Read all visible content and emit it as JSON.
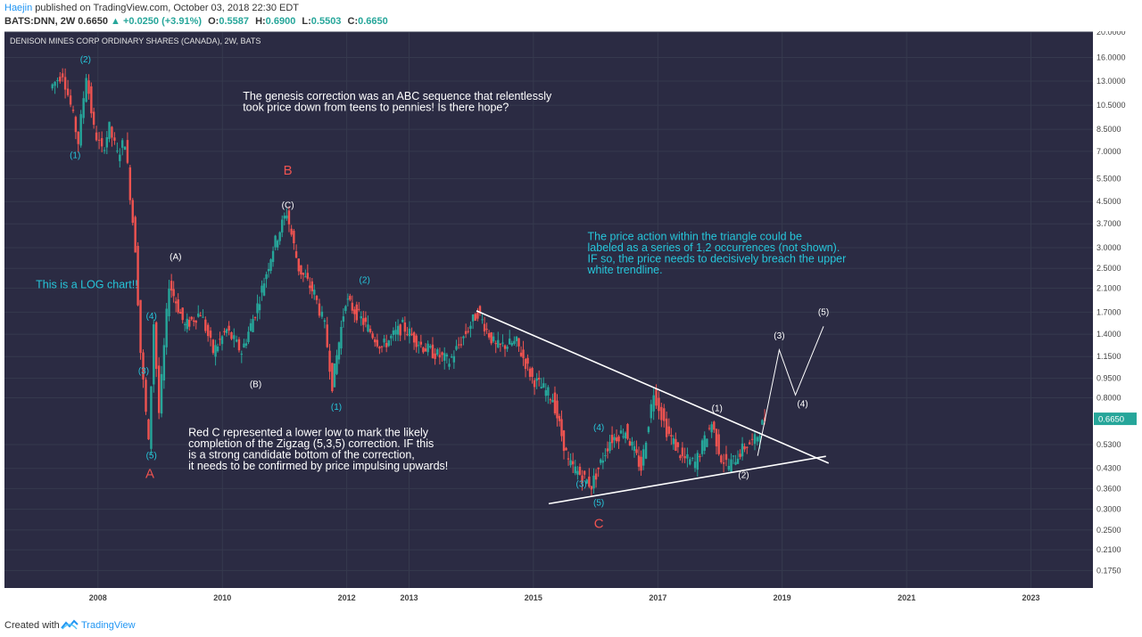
{
  "header": {
    "author": "Haejin",
    "published": " published on TradingView.com, October 03, 2018 22:30 EDT",
    "ticker": "BATS:DNN, 2W",
    "last": "0.6650",
    "change": "+0.0250 (+3.91%)",
    "open_label": "O:",
    "open": "0.5587",
    "high_label": "H:",
    "high": "0.6900",
    "low_label": "L:",
    "low": "0.5503",
    "close_label": "C:",
    "close": "0.6650"
  },
  "footer": {
    "created": "Created with",
    "brand": "TradingView"
  },
  "colors": {
    "up": "#26a69a",
    "down": "#ef5350",
    "bg": "#2b2b43",
    "grid": "#363a4e",
    "axis_bg": "#ffffff",
    "cyan_note": "#26c6da",
    "white_note": "#ffffff",
    "red_label": "#ef5350",
    "price_tag": "#26a69a"
  },
  "chart_data": {
    "type": "candlestick",
    "title": "DENISON MINES CORP ORDINARY SHARES (CANADA), 2W, BATS",
    "scale": "log",
    "ylim": [
      0.15,
      20.0
    ],
    "xlim": [
      "2006-07-01",
      "2023-12-31"
    ],
    "x_ticks": [
      "2008",
      "2010",
      "2012",
      "2013",
      "2015",
      "2017",
      "2019",
      "2021",
      "2023"
    ],
    "y_ticks": [
      "20.0000",
      "16.0000",
      "13.0000",
      "10.5000",
      "8.5000",
      "7.0000",
      "5.5000",
      "4.5000",
      "3.7000",
      "3.0000",
      "2.5000",
      "2.1000",
      "1.7000",
      "1.4000",
      "1.1500",
      "0.9500",
      "0.8000",
      "0.5300",
      "0.4300",
      "0.3600",
      "0.3000",
      "0.2500",
      "0.2100",
      "0.1750"
    ],
    "last_price": "0.6650",
    "grid": true,
    "price_path": [
      [
        "2007-04-01",
        12.2
      ],
      [
        "2007-06-15",
        14.0
      ],
      [
        "2007-08-01",
        10.5
      ],
      [
        "2007-09-15",
        7.6
      ],
      [
        "2007-11-01",
        13.8
      ],
      [
        "2007-12-15",
        8.5
      ],
      [
        "2008-02-01",
        7.0
      ],
      [
        "2008-03-15",
        8.6
      ],
      [
        "2008-05-01",
        6.8
      ],
      [
        "2008-06-15",
        7.7
      ],
      [
        "2008-08-15",
        3.0
      ],
      [
        "2008-09-15",
        1.2
      ],
      [
        "2008-11-01",
        0.53
      ],
      [
        "2008-12-01",
        1.55
      ],
      [
        "2009-01-01",
        0.7
      ],
      [
        "2009-03-01",
        2.2
      ],
      [
        "2009-06-01",
        1.5
      ],
      [
        "2009-09-01",
        1.7
      ],
      [
        "2009-11-15",
        1.2
      ],
      [
        "2010-02-01",
        1.45
      ],
      [
        "2010-05-01",
        1.2
      ],
      [
        "2010-08-01",
        1.8
      ],
      [
        "2010-11-01",
        3.0
      ],
      [
        "2011-01-20",
        4.1
      ],
      [
        "2011-04-01",
        2.5
      ],
      [
        "2011-07-01",
        2.0
      ],
      [
        "2011-09-01",
        1.5
      ],
      [
        "2011-10-15",
        0.9
      ],
      [
        "2012-01-01",
        1.9
      ],
      [
        "2012-04-01",
        1.6
      ],
      [
        "2012-08-01",
        1.25
      ],
      [
        "2012-12-01",
        1.5
      ],
      [
        "2013-04-01",
        1.25
      ],
      [
        "2013-09-01",
        1.1
      ],
      [
        "2014-02-15",
        1.7
      ],
      [
        "2014-06-01",
        1.25
      ],
      [
        "2014-10-01",
        1.3
      ],
      [
        "2015-01-01",
        0.95
      ],
      [
        "2015-05-01",
        0.8
      ],
      [
        "2015-08-01",
        0.45
      ],
      [
        "2015-12-15",
        0.37
      ],
      [
        "2016-04-01",
        0.55
      ],
      [
        "2016-07-01",
        0.6
      ],
      [
        "2016-10-01",
        0.43
      ],
      [
        "2016-12-15",
        0.85
      ],
      [
        "2017-03-01",
        0.6
      ],
      [
        "2017-06-01",
        0.47
      ],
      [
        "2017-08-15",
        0.45
      ],
      [
        "2017-11-20",
        0.64
      ],
      [
        "2018-01-15",
        0.47
      ],
      [
        "2018-03-01",
        0.44
      ],
      [
        "2018-06-01",
        0.52
      ],
      [
        "2018-08-01",
        0.55
      ],
      [
        "2018-09-28",
        0.665
      ]
    ],
    "trendlines": [
      {
        "name": "upper",
        "from": [
          "2014-02-01",
          1.72
        ],
        "to": [
          "2019-10-01",
          0.45
        ]
      },
      {
        "name": "lower",
        "from": [
          "2015-04-01",
          0.315
        ],
        "to": [
          "2019-09-15",
          0.478
        ]
      }
    ],
    "projection": [
      [
        "2018-08-10",
        0.48
      ],
      [
        "2018-12-15",
        1.22
      ],
      [
        "2019-03-20",
        0.82
      ],
      [
        "2019-09-01",
        1.5
      ]
    ],
    "wave_labels": [
      {
        "text": "(2)",
        "x": "2007-10-20",
        "y": 15.3,
        "color": "cyan"
      },
      {
        "text": "(1)",
        "x": "2007-08-20",
        "y": 6.6,
        "color": "cyan"
      },
      {
        "text": "(A)",
        "x": "2009-04-01",
        "y": 2.7,
        "color": "white"
      },
      {
        "text": "(4)",
        "x": "2008-11-10",
        "y": 1.6,
        "color": "cyan"
      },
      {
        "text": "(3)",
        "x": "2008-09-25",
        "y": 0.99,
        "color": "cyan"
      },
      {
        "text": "(5)",
        "x": "2008-11-10",
        "y": 0.47,
        "color": "cyan"
      },
      {
        "text": "A",
        "x": "2008-11-01",
        "y": 0.395,
        "color": "red"
      },
      {
        "text": "B",
        "x": "2011-01-20",
        "y": 5.7,
        "color": "red"
      },
      {
        "text": "(C)",
        "x": "2011-01-20",
        "y": 4.25,
        "color": "white"
      },
      {
        "text": "(B)",
        "x": "2010-07-15",
        "y": 0.88,
        "color": "white"
      },
      {
        "text": "(2)",
        "x": "2012-04-15",
        "y": 2.2,
        "color": "cyan"
      },
      {
        "text": "(1)",
        "x": "2011-11-01",
        "y": 0.72,
        "color": "cyan"
      },
      {
        "text": "(4)",
        "x": "2016-01-20",
        "y": 0.6,
        "color": "cyan"
      },
      {
        "text": "(3)",
        "x": "2015-10-10",
        "y": 0.365,
        "color": "cyan"
      },
      {
        "text": "(5)",
        "x": "2016-01-20",
        "y": 0.31,
        "color": "cyan"
      },
      {
        "text": "C",
        "x": "2016-01-20",
        "y": 0.255,
        "color": "red"
      },
      {
        "text": "(1)",
        "x": "2017-12-15",
        "y": 0.71,
        "color": "white"
      },
      {
        "text": "(2)",
        "x": "2018-05-20",
        "y": 0.395,
        "color": "white"
      },
      {
        "text": "(3)",
        "x": "2018-12-15",
        "y": 1.35,
        "color": "white"
      },
      {
        "text": "(4)",
        "x": "2019-05-01",
        "y": 0.74,
        "color": "white"
      },
      {
        "text": "(5)",
        "x": "2019-09-01",
        "y": 1.66,
        "color": "white"
      }
    ],
    "annotations": [
      {
        "lines": [
          "The genesis correction was an ABC sequence that relentlessly",
          "took price down from teens to pennies! Is there hope?"
        ],
        "x": "2010-05-01",
        "y": 11.0,
        "color": "white"
      },
      {
        "lines": [
          "The price action within the triangle could be",
          "labeled as a series of 1,2 occurrences (not shown).",
          "IF so, the price needs to decisively breach the upper",
          "white trendline."
        ],
        "x": "2015-11-15",
        "y": 3.2,
        "color": "cyan"
      },
      {
        "lines": [
          "This is a LOG chart!!"
        ],
        "x": "2007-01-01",
        "y": 2.1,
        "color": "cyan"
      },
      {
        "lines": [
          "Red C represented a lower low to mark the likely",
          "completion of the Zigzag (5,3,5) correction. IF this",
          "is a strong candidate bottom of the correction,",
          "it needs to be confirmed by price impulsing upwards!"
        ],
        "x": "2009-06-15",
        "y": 0.57,
        "color": "white"
      }
    ]
  }
}
